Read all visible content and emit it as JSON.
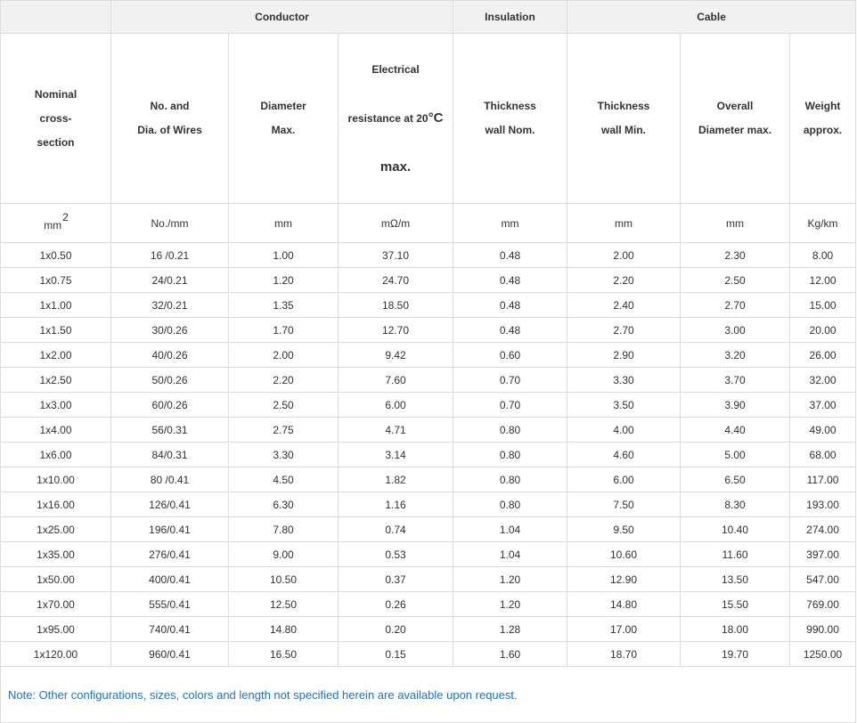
{
  "table": {
    "groups": [
      {
        "label": "Conductor"
      },
      {
        "label": "Insulation"
      },
      {
        "label": "Cable"
      }
    ],
    "columns": [
      {
        "title": "Nominal\ncross-\nsection",
        "unit_base": "mm",
        "unit_sup": "2"
      },
      {
        "title": "No. and\nDia. of Wires",
        "unit": "No./mm"
      },
      {
        "title": "Diameter\nMax.",
        "unit": "mm"
      },
      {
        "title_line1": "Electrical",
        "title_line2": "resistance at 20",
        "title_line2_em": "°C",
        "title_line3": "max.",
        "unit": "mΩ/m"
      },
      {
        "title": "Thickness\nwall Nom.",
        "unit": "mm"
      },
      {
        "title": "Thickness\nwall Min.",
        "unit": "mm"
      },
      {
        "title": "Overall\nDiameter max.",
        "unit": "mm"
      },
      {
        "title": "Weight\napprox.",
        "unit": "Kg/km"
      }
    ],
    "rows": [
      [
        "1x0.50",
        "16 /0.21",
        "1.00",
        "37.10",
        "0.48",
        "2.00",
        "2.30",
        "8.00"
      ],
      [
        "1x0.75",
        "24/0.21",
        "1.20",
        "24.70",
        "0.48",
        "2.20",
        "2.50",
        "12.00"
      ],
      [
        "1x1.00",
        "32/0.21",
        "1.35",
        "18.50",
        "0.48",
        "2.40",
        "2.70",
        "15.00"
      ],
      [
        "1x1.50",
        "30/0.26",
        "1.70",
        "12.70",
        "0.48",
        "2.70",
        "3.00",
        "20.00"
      ],
      [
        "1x2.00",
        "40/0.26",
        "2.00",
        "9.42",
        "0.60",
        "2.90",
        "3.20",
        "26.00"
      ],
      [
        "1x2.50",
        "50/0.26",
        "2.20",
        "7.60",
        "0.70",
        "3.30",
        "3.70",
        "32.00"
      ],
      [
        "1x3.00",
        "60/0.26",
        "2.50",
        "6.00",
        "0.70",
        "3.50",
        "3.90",
        "37.00"
      ],
      [
        "1x4.00",
        "56/0.31",
        "2.75",
        "4.71",
        "0.80",
        "4.00",
        "4.40",
        "49.00"
      ],
      [
        "1x6.00",
        "84/0.31",
        "3.30",
        "3.14",
        "0.80",
        "4.60",
        "5.00",
        "68.00"
      ],
      [
        "1x10.00",
        "80 /0.41",
        "4.50",
        "1.82",
        "0.80",
        "6.00",
        "6.50",
        "117.00"
      ],
      [
        "1x16.00",
        "126/0.41",
        "6.30",
        "1.16",
        "0.80",
        "7.50",
        "8.30",
        "193.00"
      ],
      [
        "1x25.00",
        "196/0.41",
        "7.80",
        "0.74",
        "1.04",
        "9.50",
        "10.40",
        "274.00"
      ],
      [
        "1x35.00",
        "276/0.41",
        "9.00",
        "0.53",
        "1.04",
        "10.60",
        "11.60",
        "397.00"
      ],
      [
        "1x50.00",
        "400/0.41",
        "10.50",
        "0.37",
        "1.20",
        "12.90",
        "13.50",
        "547.00"
      ],
      [
        "1x70.00",
        "555/0.41",
        "12.50",
        "0.26",
        "1.20",
        "14.80",
        "15.50",
        "769.00"
      ],
      [
        "1x95.00",
        "740/0.41",
        "14.80",
        "0.20",
        "1.28",
        "17.00",
        "18.00",
        "990.00"
      ],
      [
        "1x120.00",
        "960/0.41",
        "16.50",
        "0.15",
        "1.60",
        "18.70",
        "19.70",
        "1250.00"
      ]
    ]
  },
  "note": "Note: Other configurations, sizes, colors and length not specified herein are available upon request.",
  "colors": {
    "header_bg": "#f1f1f1",
    "border": "#dddddd",
    "text": "#333333",
    "note_text": "#1e73be"
  }
}
